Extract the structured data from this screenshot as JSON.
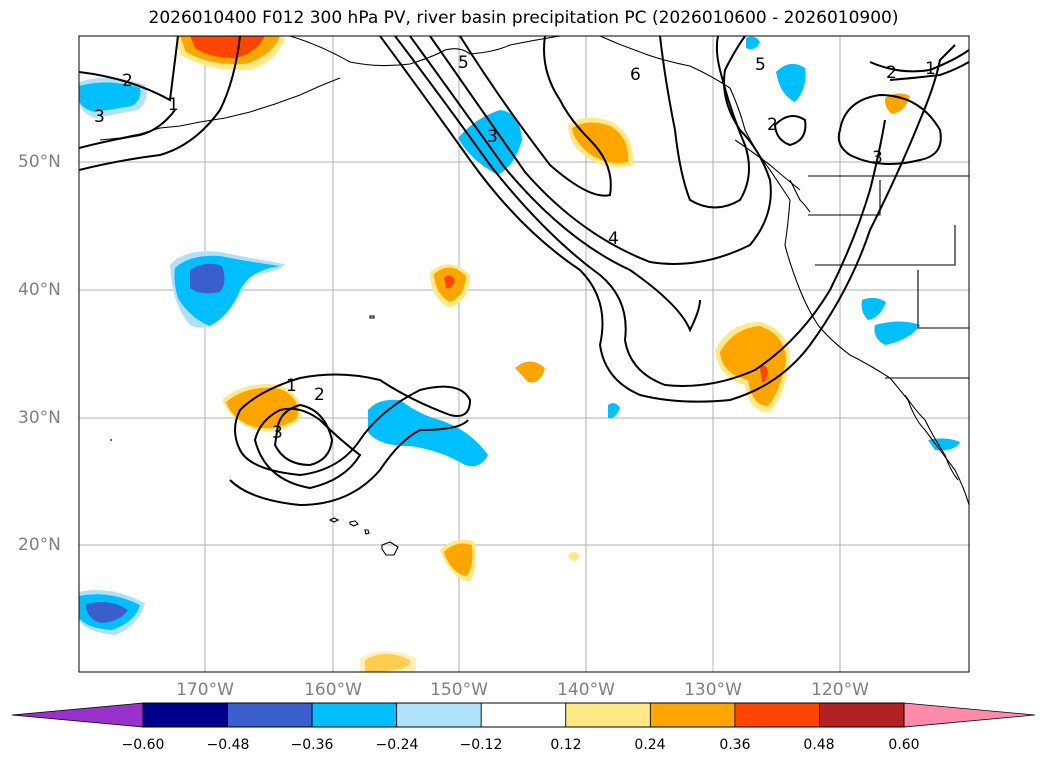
{
  "title": "2026010400 F012 300 hPa PV, river basin precipitation PC (2026010600 - 2026010900)",
  "lat_labels": [
    "50°N",
    "40°N",
    "30°N",
    "20°N"
  ],
  "lon_labels": [
    "170°W",
    "160°W",
    "150°W",
    "140°W",
    "130°W",
    "120°W"
  ],
  "colorbar": {
    "ticks": [
      "−0.60",
      "−0.48",
      "−0.36",
      "−0.24",
      "−0.12",
      "0.12",
      "0.24",
      "0.36",
      "0.48",
      "0.60"
    ],
    "colors": [
      "#9932cc",
      "#00008b",
      "#3a5fcd",
      "#00bfff",
      "#afe1fa",
      "#ffffff",
      "#ffe885",
      "#ffa500",
      "#ff4500",
      "#b22222",
      "#ff8aaa"
    ]
  },
  "contour_labels": [
    "2",
    "1",
    "3",
    "5",
    "3",
    "4",
    "5",
    "6",
    "2",
    "1",
    "3",
    "2",
    "1",
    "2",
    "3"
  ],
  "colors": {
    "grid": "#b0b0b0",
    "coast": "#000000",
    "contour": "#000000",
    "axis_label": "#808080"
  }
}
